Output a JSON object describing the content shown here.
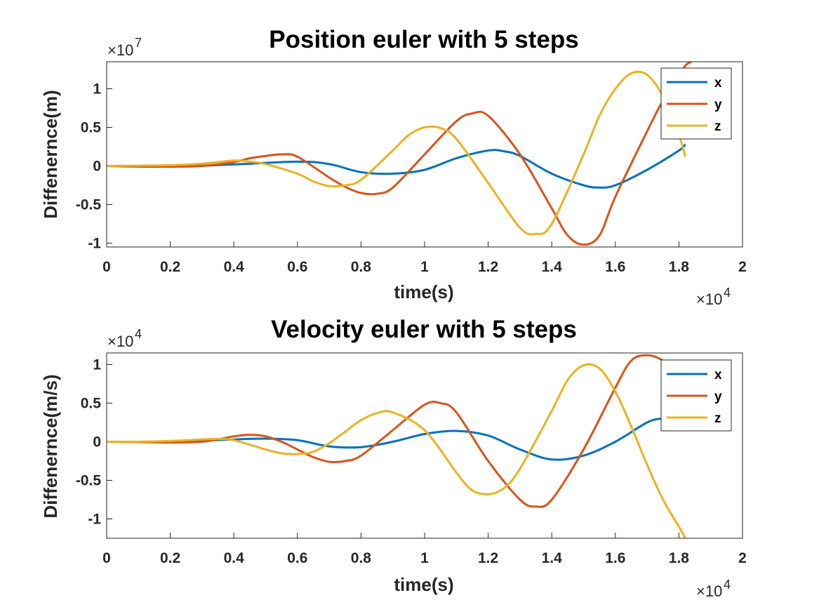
{
  "chart_data": [
    {
      "type": "line",
      "title": "Position euler with 5 steps",
      "xlabel": "time(s)",
      "ylabel": "Diffenernce(m)",
      "x_multiplier": "×10",
      "x_exponent": "4",
      "y_multiplier": "×10",
      "y_exponent": "7",
      "xlim": [
        0,
        20000
      ],
      "ylim": [
        -10500000,
        13500000
      ],
      "xticks": [
        0,
        2000,
        4000,
        6000,
        8000,
        10000,
        12000,
        14000,
        16000,
        18000,
        20000
      ],
      "xtick_labels": [
        "0",
        "0.2",
        "0.4",
        "0.6",
        "0.8",
        "1",
        "1.2",
        "1.4",
        "1.6",
        "1.8",
        "2"
      ],
      "yticks": [
        -10000000,
        -5000000,
        0,
        5000000,
        10000000
      ],
      "ytick_labels": [
        "-1",
        "-0.5",
        "0",
        "0.5",
        "1"
      ],
      "legend_position": "top-right",
      "series": [
        {
          "name": "x",
          "color": "#0072BD",
          "x": [
            0,
            2000,
            4000,
            6000,
            7000,
            8000,
            9000,
            10000,
            11000,
            12000,
            12500,
            13000,
            14000,
            15000,
            15500,
            16000,
            17000,
            18000,
            18200
          ],
          "y": [
            0,
            -100000,
            200000,
            550000,
            250000,
            -800000,
            -1000000,
            -500000,
            1000000,
            2000000,
            1900000,
            1300000,
            -1000000,
            -2500000,
            -2800000,
            -2500000,
            -500000,
            2000000,
            2800000
          ]
        },
        {
          "name": "y",
          "color": "#D95319",
          "x": [
            0,
            1000,
            2000,
            3000,
            4000,
            4500,
            5000,
            5500,
            6000,
            7000,
            7500,
            8000,
            8500,
            9000,
            10000,
            11000,
            11500,
            12000,
            13000,
            14000,
            14500,
            15000,
            15500,
            16000,
            17000,
            17500,
            18000,
            18200,
            18400
          ],
          "y": [
            0,
            -30000,
            -100000,
            0,
            500000,
            1000000,
            1300000,
            1500000,
            1200000,
            -1500000,
            -2700000,
            -3500000,
            -3600000,
            -2800000,
            1500000,
            5800000,
            6800000,
            6500000,
            1500000,
            -5500000,
            -9000000,
            -10200000,
            -9000000,
            -4000000,
            4500000,
            8500000,
            11500000,
            13000000,
            13500000
          ]
        },
        {
          "name": "z",
          "color": "#EDB120",
          "x": [
            0,
            2000,
            3000,
            4000,
            4500,
            5000,
            6000,
            6500,
            7000,
            7500,
            8000,
            9000,
            9500,
            10000,
            10500,
            11000,
            12000,
            13000,
            13500,
            14000,
            15000,
            15500,
            16000,
            16500,
            17000,
            17500,
            18000,
            18200
          ],
          "y": [
            0,
            100000,
            300000,
            700000,
            550000,
            250000,
            -1000000,
            -2000000,
            -2600000,
            -2500000,
            -1800000,
            2000000,
            4000000,
            5000000,
            4900000,
            3500000,
            -2200000,
            -8000000,
            -8800000,
            -7500000,
            1500000,
            6500000,
            10000000,
            12000000,
            11800000,
            9000000,
            4000000,
            1200000
          ]
        }
      ]
    },
    {
      "type": "line",
      "title": "Velocity euler with 5 steps",
      "xlabel": "time(s)",
      "ylabel": "Diffenernce(m/s)",
      "x_multiplier": "×10",
      "x_exponent": "4",
      "y_multiplier": "×10",
      "y_exponent": "4",
      "xlim": [
        0,
        20000
      ],
      "ylim": [
        -12500,
        11500
      ],
      "xticks": [
        0,
        2000,
        4000,
        6000,
        8000,
        10000,
        12000,
        14000,
        16000,
        18000,
        20000
      ],
      "xtick_labels": [
        "0",
        "0.2",
        "0.4",
        "0.6",
        "0.8",
        "1",
        "1.2",
        "1.4",
        "1.6",
        "1.8",
        "2"
      ],
      "yticks": [
        -10000,
        -5000,
        0,
        5000,
        10000
      ],
      "ytick_labels": [
        "-1",
        "-0.5",
        "0",
        "0.5",
        "1"
      ],
      "legend_position": "top-right",
      "series": [
        {
          "name": "x",
          "color": "#0072BD",
          "x": [
            0,
            2000,
            4000,
            5000,
            6000,
            7000,
            8000,
            9000,
            10000,
            11000,
            12000,
            13000,
            14000,
            15000,
            16000,
            17000,
            17500,
            18000,
            18200
          ],
          "y": [
            0,
            0,
            300,
            400,
            200,
            -600,
            -700,
            0,
            1000,
            1400,
            800,
            -1000,
            -2300,
            -1800,
            0,
            2500,
            3000,
            2900,
            2800
          ]
        },
        {
          "name": "y",
          "color": "#D95319",
          "x": [
            0,
            1000,
            2000,
            3000,
            3500,
            4000,
            4500,
            5000,
            5500,
            6000,
            6500,
            7000,
            7500,
            8000,
            9000,
            10000,
            10500,
            11000,
            12000,
            13000,
            13500,
            14000,
            15000,
            16000,
            16500,
            17000,
            17500,
            18000,
            18200
          ],
          "y": [
            0,
            -50,
            -100,
            0,
            300,
            700,
            900,
            700,
            0,
            -1000,
            -2000,
            -2600,
            -2500,
            -1800,
            1500,
            4800,
            5000,
            3800,
            -2500,
            -7500,
            -8400,
            -7500,
            -1000,
            7000,
            10500,
            11200,
            10500,
            8500,
            7500
          ]
        },
        {
          "name": "z",
          "color": "#EDB120",
          "x": [
            0,
            1000,
            2000,
            3000,
            3500,
            4000,
            5000,
            5500,
            6000,
            6500,
            7000,
            7500,
            8000,
            8500,
            9000,
            10000,
            11000,
            11500,
            12000,
            12500,
            13000,
            14000,
            14500,
            15000,
            15500,
            16000,
            16500,
            17000,
            17500,
            18000,
            18200
          ],
          "y": [
            0,
            0,
            100,
            300,
            350,
            200,
            -1000,
            -1500,
            -1600,
            -1300,
            -200,
            1300,
            2800,
            3700,
            3800,
            1500,
            -4000,
            -6300,
            -6800,
            -6000,
            -3500,
            4000,
            8000,
            9900,
            9500,
            6500,
            2000,
            -3000,
            -7500,
            -11000,
            -12500
          ]
        }
      ]
    }
  ]
}
